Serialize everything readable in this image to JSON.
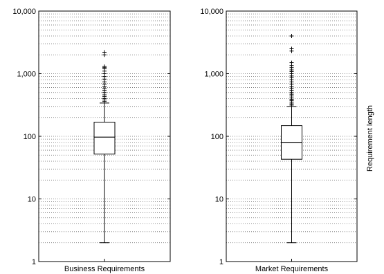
{
  "chart_data": [
    {
      "type": "boxplot",
      "category": "Business Requirements",
      "y_scale": "log",
      "ylim": [
        1,
        10000
      ],
      "y_tick_labels": [
        "1",
        "10",
        "100",
        "1,000",
        "10,000"
      ],
      "y_tick_values": [
        1,
        10,
        100,
        1000,
        10000
      ],
      "grid": "dotted (major and minor)",
      "box": {
        "whisker_low": 2,
        "q1": 52,
        "median": 97,
        "q3": 168,
        "whisker_high": 340
      },
      "outliers": [
        360,
        380,
        400,
        430,
        460,
        500,
        540,
        580,
        620,
        680,
        740,
        820,
        900,
        1000,
        1100,
        1200,
        1250,
        1300,
        2000,
        2200
      ]
    },
    {
      "type": "boxplot",
      "category": "Market Requirements",
      "y_scale": "log",
      "ylim": [
        1,
        10000
      ],
      "y_tick_labels": [
        "1",
        "10",
        "100",
        "1,000",
        "10,000"
      ],
      "y_tick_values": [
        1,
        10,
        100,
        1000,
        10000
      ],
      "grid": "dotted (major and minor)",
      "box": {
        "whisker_low": 2,
        "q1": 43,
        "median": 80,
        "q3": 148,
        "whisker_high": 300
      },
      "outliers": [
        315,
        330,
        350,
        370,
        390,
        410,
        440,
        470,
        500,
        540,
        580,
        620,
        680,
        740,
        800,
        860,
        920,
        1000,
        1080,
        1150,
        1250,
        1350,
        1500,
        2300,
        2500,
        4000
      ]
    }
  ],
  "shared_ylabel": "Requirement length"
}
